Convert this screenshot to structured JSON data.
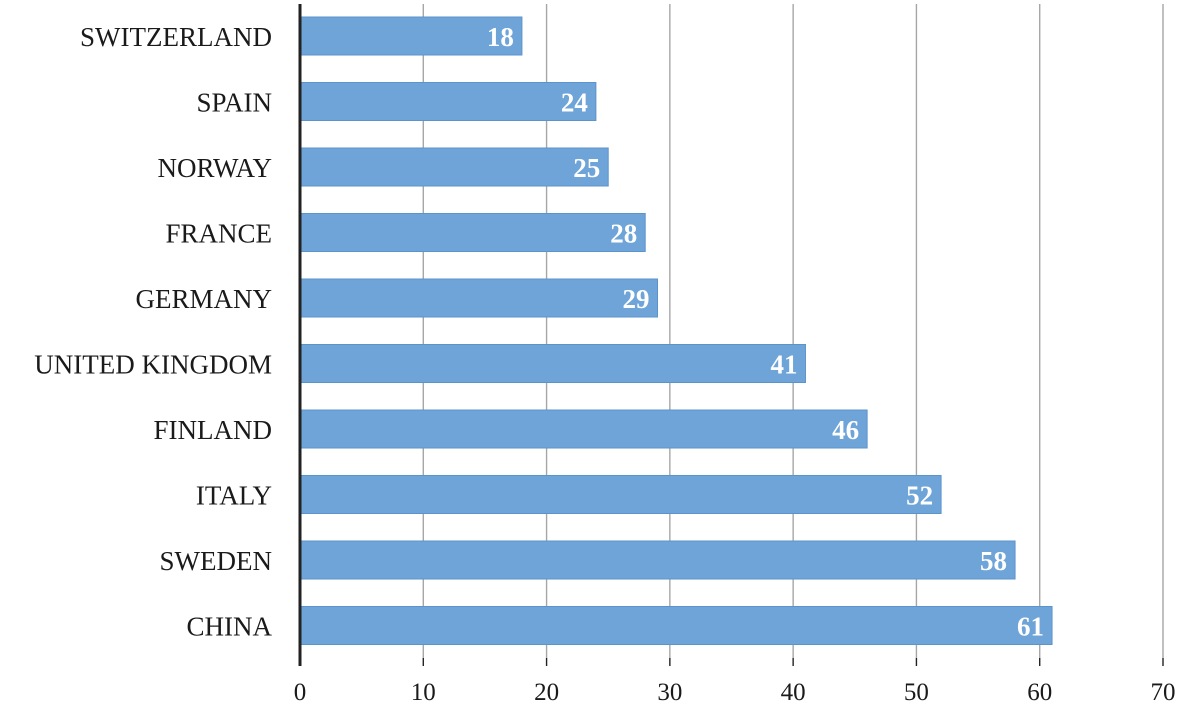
{
  "chart_data": {
    "type": "bar",
    "orientation": "horizontal",
    "categories": [
      "SWITZERLAND",
      "SPAIN",
      "NORWAY",
      "FRANCE",
      "GERMANY",
      "UNITED KINGDOM",
      "FINLAND",
      "ITALY",
      "SWEDEN",
      "CHINA"
    ],
    "values": [
      18,
      24,
      25,
      28,
      29,
      41,
      46,
      52,
      58,
      61
    ],
    "title": "",
    "xlabel": "",
    "ylabel": "",
    "xlim": [
      0,
      70
    ],
    "xticks": [
      0,
      10,
      20,
      30,
      40,
      50,
      60,
      70
    ],
    "grid": "vertical",
    "legend": "none",
    "data_labels": "inside-end",
    "colors": {
      "bar": "#6fa4d8",
      "bar_edge": "#5b93cb",
      "grid": "#a6a6a6",
      "axis": "#222222",
      "data_label": "#ffffff"
    }
  }
}
